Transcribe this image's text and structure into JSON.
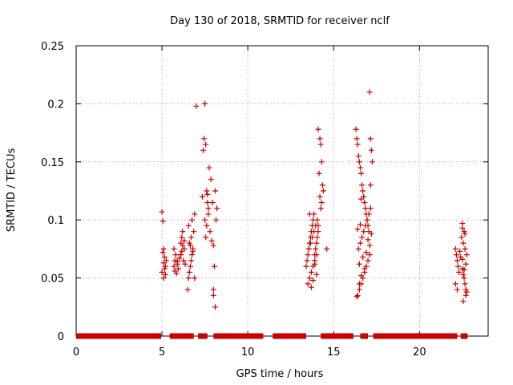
{
  "chart_data": {
    "type": "scatter",
    "title": "Day 130 of 2018, SRMTID for receiver nclf",
    "xlabel": "GPS time / hours",
    "ylabel": "SRMTID / TECUs",
    "xlim": [
      0,
      24
    ],
    "ylim": [
      0,
      0.25
    ],
    "xticks": [
      0,
      5,
      10,
      15,
      20
    ],
    "xtick_labels": [
      "0",
      "5",
      "10",
      "15",
      "20"
    ],
    "yticks": [
      0,
      0.05,
      0.1,
      0.15,
      0.2,
      0.25
    ],
    "ytick_labels": [
      "0",
      "0.05",
      "0.1",
      "0.15",
      "0.2",
      "0.25"
    ],
    "grid": true,
    "marker": "+",
    "colors": {
      "marker": "#cc0000",
      "grid": "#b0b0b0",
      "axis": "#000000"
    },
    "series": [
      {
        "name": "SRMTID",
        "x": [
          5.0,
          5.05,
          5.1,
          5.15,
          5.2,
          5.0,
          5.1,
          5.25,
          5.05,
          5.15,
          5.2,
          5.1,
          5.7,
          5.75,
          5.8,
          5.9,
          5.95,
          5.7,
          5.85,
          6.0,
          5.75,
          5.9,
          6.1,
          6.15,
          6.2,
          6.3,
          6.1,
          6.25,
          6.35,
          6.2,
          6.15,
          6.3,
          6.5,
          6.55,
          6.6,
          6.65,
          6.7,
          6.75,
          6.8,
          6.6,
          6.7,
          6.85,
          6.55,
          6.75,
          6.9,
          6.65,
          6.8,
          7.0,
          6.9,
          7.35,
          7.4,
          7.45,
          7.5,
          7.55,
          7.6,
          7.65,
          7.7,
          7.5,
          7.6,
          7.8,
          7.55,
          7.75,
          7.85,
          7.65,
          7.9,
          8.0,
          8.05,
          8.1,
          8.0,
          8.15,
          7.7,
          7.95,
          8.2,
          8.1,
          8.0,
          13.4,
          13.45,
          13.5,
          13.55,
          13.6,
          13.65,
          13.7,
          13.75,
          13.8,
          13.85,
          13.9,
          13.95,
          14.0,
          14.05,
          14.1,
          13.5,
          13.6,
          13.7,
          13.8,
          13.9,
          14.0,
          13.55,
          13.65,
          13.75,
          13.85,
          13.95,
          14.05,
          13.6,
          13.8,
          14.0,
          13.7,
          13.9,
          14.1,
          14.2,
          14.25,
          14.3,
          14.15,
          14.35,
          14.4,
          14.2,
          14.3,
          14.6,
          14.1,
          14.25,
          16.3,
          16.35,
          16.4,
          16.45,
          16.5,
          16.55,
          16.6,
          16.65,
          16.7,
          16.75,
          16.8,
          16.85,
          16.9,
          16.95,
          17.0,
          17.05,
          17.1,
          17.15,
          17.2,
          17.25,
          16.4,
          16.5,
          16.6,
          16.7,
          16.8,
          16.9,
          17.0,
          17.1,
          16.45,
          16.55,
          16.65,
          16.75,
          16.85,
          16.95,
          17.05,
          17.15,
          16.5,
          16.7,
          16.9,
          17.1,
          16.35,
          16.6,
          16.8,
          17.0,
          17.2,
          16.4,
          16.5,
          17.15,
          16.6,
          16.55,
          22.1,
          22.15,
          22.2,
          22.25,
          22.3,
          22.1,
          22.2,
          22.35,
          22.4,
          22.5,
          22.55,
          22.6,
          22.65,
          22.7,
          22.5,
          22.6,
          22.45,
          22.55,
          22.65,
          22.75,
          22.5,
          22.7,
          22.6,
          22.7,
          22.55,
          22.75,
          22.65,
          22.5
        ],
        "y": [
          0.107,
          0.099,
          0.075,
          0.068,
          0.06,
          0.055,
          0.05,
          0.065,
          0.072,
          0.058,
          0.053,
          0.063,
          0.06,
          0.065,
          0.07,
          0.062,
          0.058,
          0.075,
          0.054,
          0.067,
          0.056,
          0.064,
          0.08,
          0.085,
          0.09,
          0.075,
          0.07,
          0.065,
          0.062,
          0.078,
          0.073,
          0.082,
          0.04,
          0.05,
          0.055,
          0.06,
          0.065,
          0.07,
          0.075,
          0.08,
          0.085,
          0.09,
          0.095,
          0.1,
          0.105,
          0.078,
          0.073,
          0.198,
          0.05,
          0.12,
          0.16,
          0.17,
          0.2,
          0.165,
          0.125,
          0.115,
          0.11,
          0.1,
          0.095,
          0.09,
          0.085,
          0.145,
          0.135,
          0.122,
          0.082,
          0.078,
          0.06,
          0.125,
          0.04,
          0.1,
          0.105,
          0.115,
          0.11,
          0.025,
          0.035,
          0.06,
          0.065,
          0.07,
          0.075,
          0.08,
          0.085,
          0.09,
          0.095,
          0.1,
          0.105,
          0.07,
          0.075,
          0.08,
          0.085,
          0.09,
          0.045,
          0.05,
          0.055,
          0.06,
          0.065,
          0.07,
          0.075,
          0.08,
          0.085,
          0.09,
          0.095,
          0.1,
          0.105,
          0.048,
          0.053,
          0.042,
          0.062,
          0.178,
          0.17,
          0.165,
          0.15,
          0.14,
          0.13,
          0.125,
          0.12,
          0.115,
          0.075,
          0.095,
          0.11,
          0.178,
          0.17,
          0.165,
          0.155,
          0.15,
          0.145,
          0.14,
          0.13,
          0.125,
          0.12,
          0.115,
          0.11,
          0.105,
          0.1,
          0.095,
          0.09,
          0.21,
          0.17,
          0.16,
          0.15,
          0.035,
          0.04,
          0.045,
          0.05,
          0.055,
          0.06,
          0.065,
          0.07,
          0.075,
          0.08,
          0.085,
          0.09,
          0.095,
          0.1,
          0.105,
          0.11,
          0.062,
          0.068,
          0.072,
          0.078,
          0.034,
          0.052,
          0.058,
          0.083,
          0.088,
          0.092,
          0.045,
          0.13,
          0.118,
          0.096,
          0.075,
          0.07,
          0.065,
          0.06,
          0.055,
          0.045,
          0.04,
          0.073,
          0.068,
          0.058,
          0.053,
          0.05,
          0.045,
          0.04,
          0.097,
          0.09,
          0.085,
          0.08,
          0.075,
          0.07,
          0.066,
          0.062,
          0.057,
          0.035,
          0.03,
          0.038,
          0.088,
          0.093
        ]
      },
      {
        "name": "zero-level",
        "segments": [
          [
            0,
            4.95
          ],
          [
            5.45,
            6.85
          ],
          [
            7.1,
            7.65
          ],
          [
            8.0,
            10.9
          ],
          [
            11.45,
            13.4
          ],
          [
            14.25,
            16.15
          ],
          [
            16.55,
            17.0
          ],
          [
            17.3,
            22.2
          ],
          [
            22.4,
            22.8
          ]
        ]
      }
    ]
  }
}
